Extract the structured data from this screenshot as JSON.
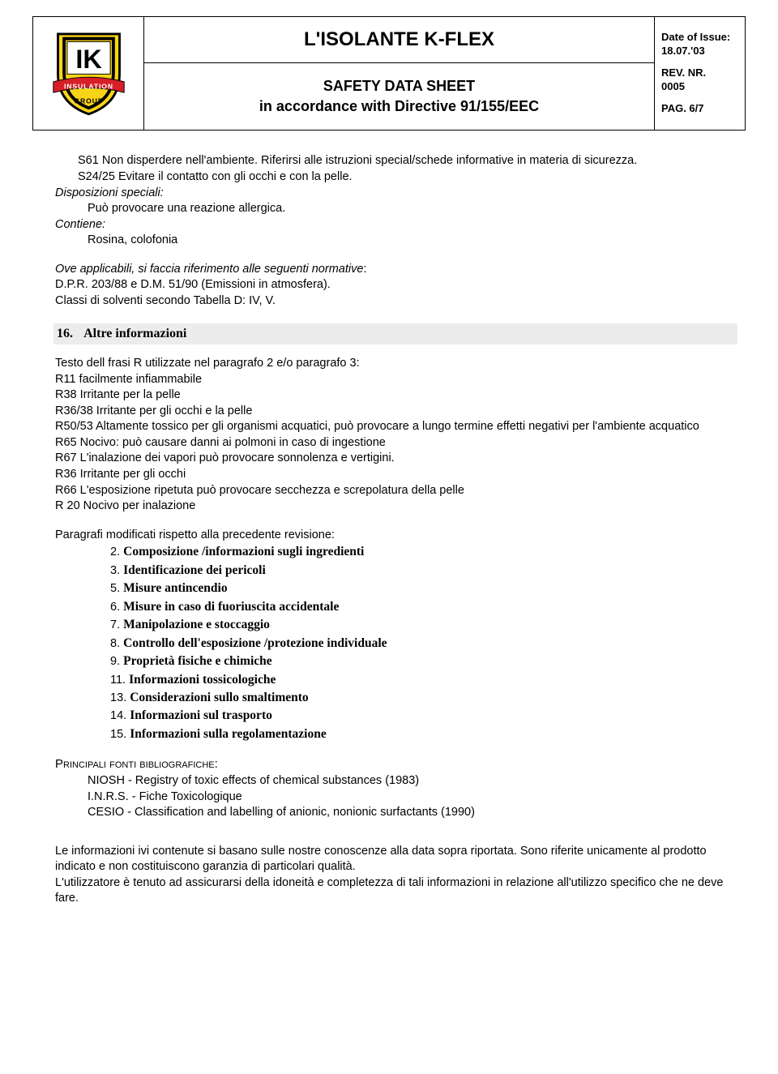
{
  "header": {
    "main_title": "L'ISOLANTE K-FLEX",
    "sub_title_1": "SAFETY DATA SHEET",
    "sub_title_2": "in accordance with Directive 91/155/EEC",
    "date_label": "Date of Issue:",
    "date_value": "18.07.'03",
    "rev_label": "REV. NR.",
    "rev_value": "0005",
    "page_label": "PAG. 6/7",
    "logo": {
      "band_text": "INSULATION",
      "group_text": "GROUP",
      "letters": "IK",
      "shield_fill": "#f7d417",
      "shield_stroke": "#000000",
      "band_fill": "#d61f26",
      "band_text_color": "#ffffff"
    }
  },
  "section15_tail": {
    "s61": "S61 Non disperdere nell'ambiente. Riferirsi alle istruzioni special/schede informative in materia di sicurezza.",
    "s24_25": "S24/25 Evitare il contatto con gli occhi e con la pelle.",
    "disp_label": "Disposizioni speciali:",
    "disp_text": "Può provocare una reazione allergica.",
    "contiene_label": "Contiene:",
    "contiene_text": "Rosina, colofonia",
    "ove_line_1": "Ove applicabili, si faccia riferimento alle seguenti normative",
    "ove_line_2": "D.P.R. 203/88 e D.M. 51/90 (Emissioni in atmosfera).",
    "ove_line_3": "Classi di solventi secondo Tabella D:  IV, V."
  },
  "section16": {
    "num": "16.",
    "title": "Altre informazioni",
    "intro": "Testo dell frasi R utilizzate nel paragrafo 2 e/o paragrafo 3:",
    "r_phrases": [
      "R11 facilmente infiammabile",
      "R38 Irritante per la pelle",
      "R36/38 Irritante per gli occhi e la pelle",
      "R50/53 Altamente tossico per gli organismi acquatici, può provocare  a lungo termine effetti negativi per l'ambiente acquatico",
      "R65 Nocivo: può causare danni ai polmoni in caso di ingestione",
      "R67 L'inalazione dei vapori può provocare sonnolenza e vertigini.",
      "R36 Irritante per gli occhi",
      "R66 L'esposizione ripetuta può provocare secchezza e screpolatura della pelle",
      "R 20 Nocivo per inalazione"
    ],
    "modified_label": "Paragrafi modificati rispetto alla precedente revisione:",
    "modified_items": [
      {
        "n": "2.",
        "t": "Composizione /informazioni sugli ingredienti"
      },
      {
        "n": "3.",
        "t": "Identificazione dei pericoli"
      },
      {
        "n": "5.",
        "t": "Misure antincendio"
      },
      {
        "n": "6.",
        "t": "Misure in caso di fuoriuscita accidentale"
      },
      {
        "n": "7.",
        "t": "Manipolazione e stoccaggio"
      },
      {
        "n": "8.",
        "t": "Controllo dell'esposizione /protezione individuale"
      },
      {
        "n": "9.",
        "t": "Proprietà fisiche e chimiche"
      },
      {
        "n": "11.",
        "t": "Informazioni tossicologiche"
      },
      {
        "n": "13.",
        "t": "Considerazioni sullo smaltimento"
      },
      {
        "n": "14.",
        "t": "Informazioni sul trasporto"
      },
      {
        "n": "15.",
        "t": "Informazioni sulla regolamentazione"
      }
    ],
    "refs_label": "Principali fonti bibliografiche:",
    "refs": [
      "NIOSH - Registry of toxic effects of chemical substances (1983)",
      "I.N.R.S. - Fiche Toxicologique",
      "CESIO - Classification and labelling of anionic, nonionic surfactants (1990)"
    ],
    "disclaimer_1": "Le informazioni ivi contenute si basano sulle nostre conoscenze alla data sopra riportata. Sono riferite unicamente al prodotto indicato e non costituiscono garanzia di particolari qualità.",
    "disclaimer_2": "L'utilizzatore è tenuto ad assicurarsi della idoneità e completezza di tali informazioni in relazione all'utilizzo specifico che ne deve fare."
  }
}
